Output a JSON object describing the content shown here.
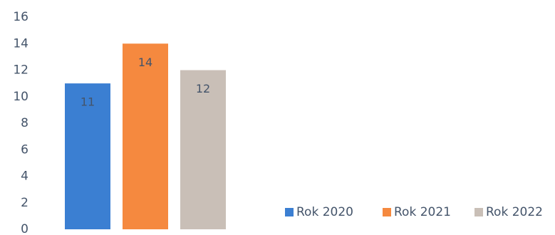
{
  "chart_data": {
    "type": "bar",
    "categories": [
      null
    ],
    "series": [
      {
        "name": "Rok 2020",
        "color": "#3b7fd2",
        "values": [
          11
        ]
      },
      {
        "name": "Rok 2021",
        "color": "#f5893f",
        "values": [
          14
        ]
      },
      {
        "name": "Rok 2022",
        "color": "#c9bfb7",
        "values": [
          12
        ]
      }
    ],
    "ylim": [
      0,
      16
    ],
    "yticks": [
      0,
      2,
      4,
      6,
      8,
      10,
      12,
      14,
      16
    ],
    "grid": false,
    "legend": "bottom-right"
  }
}
